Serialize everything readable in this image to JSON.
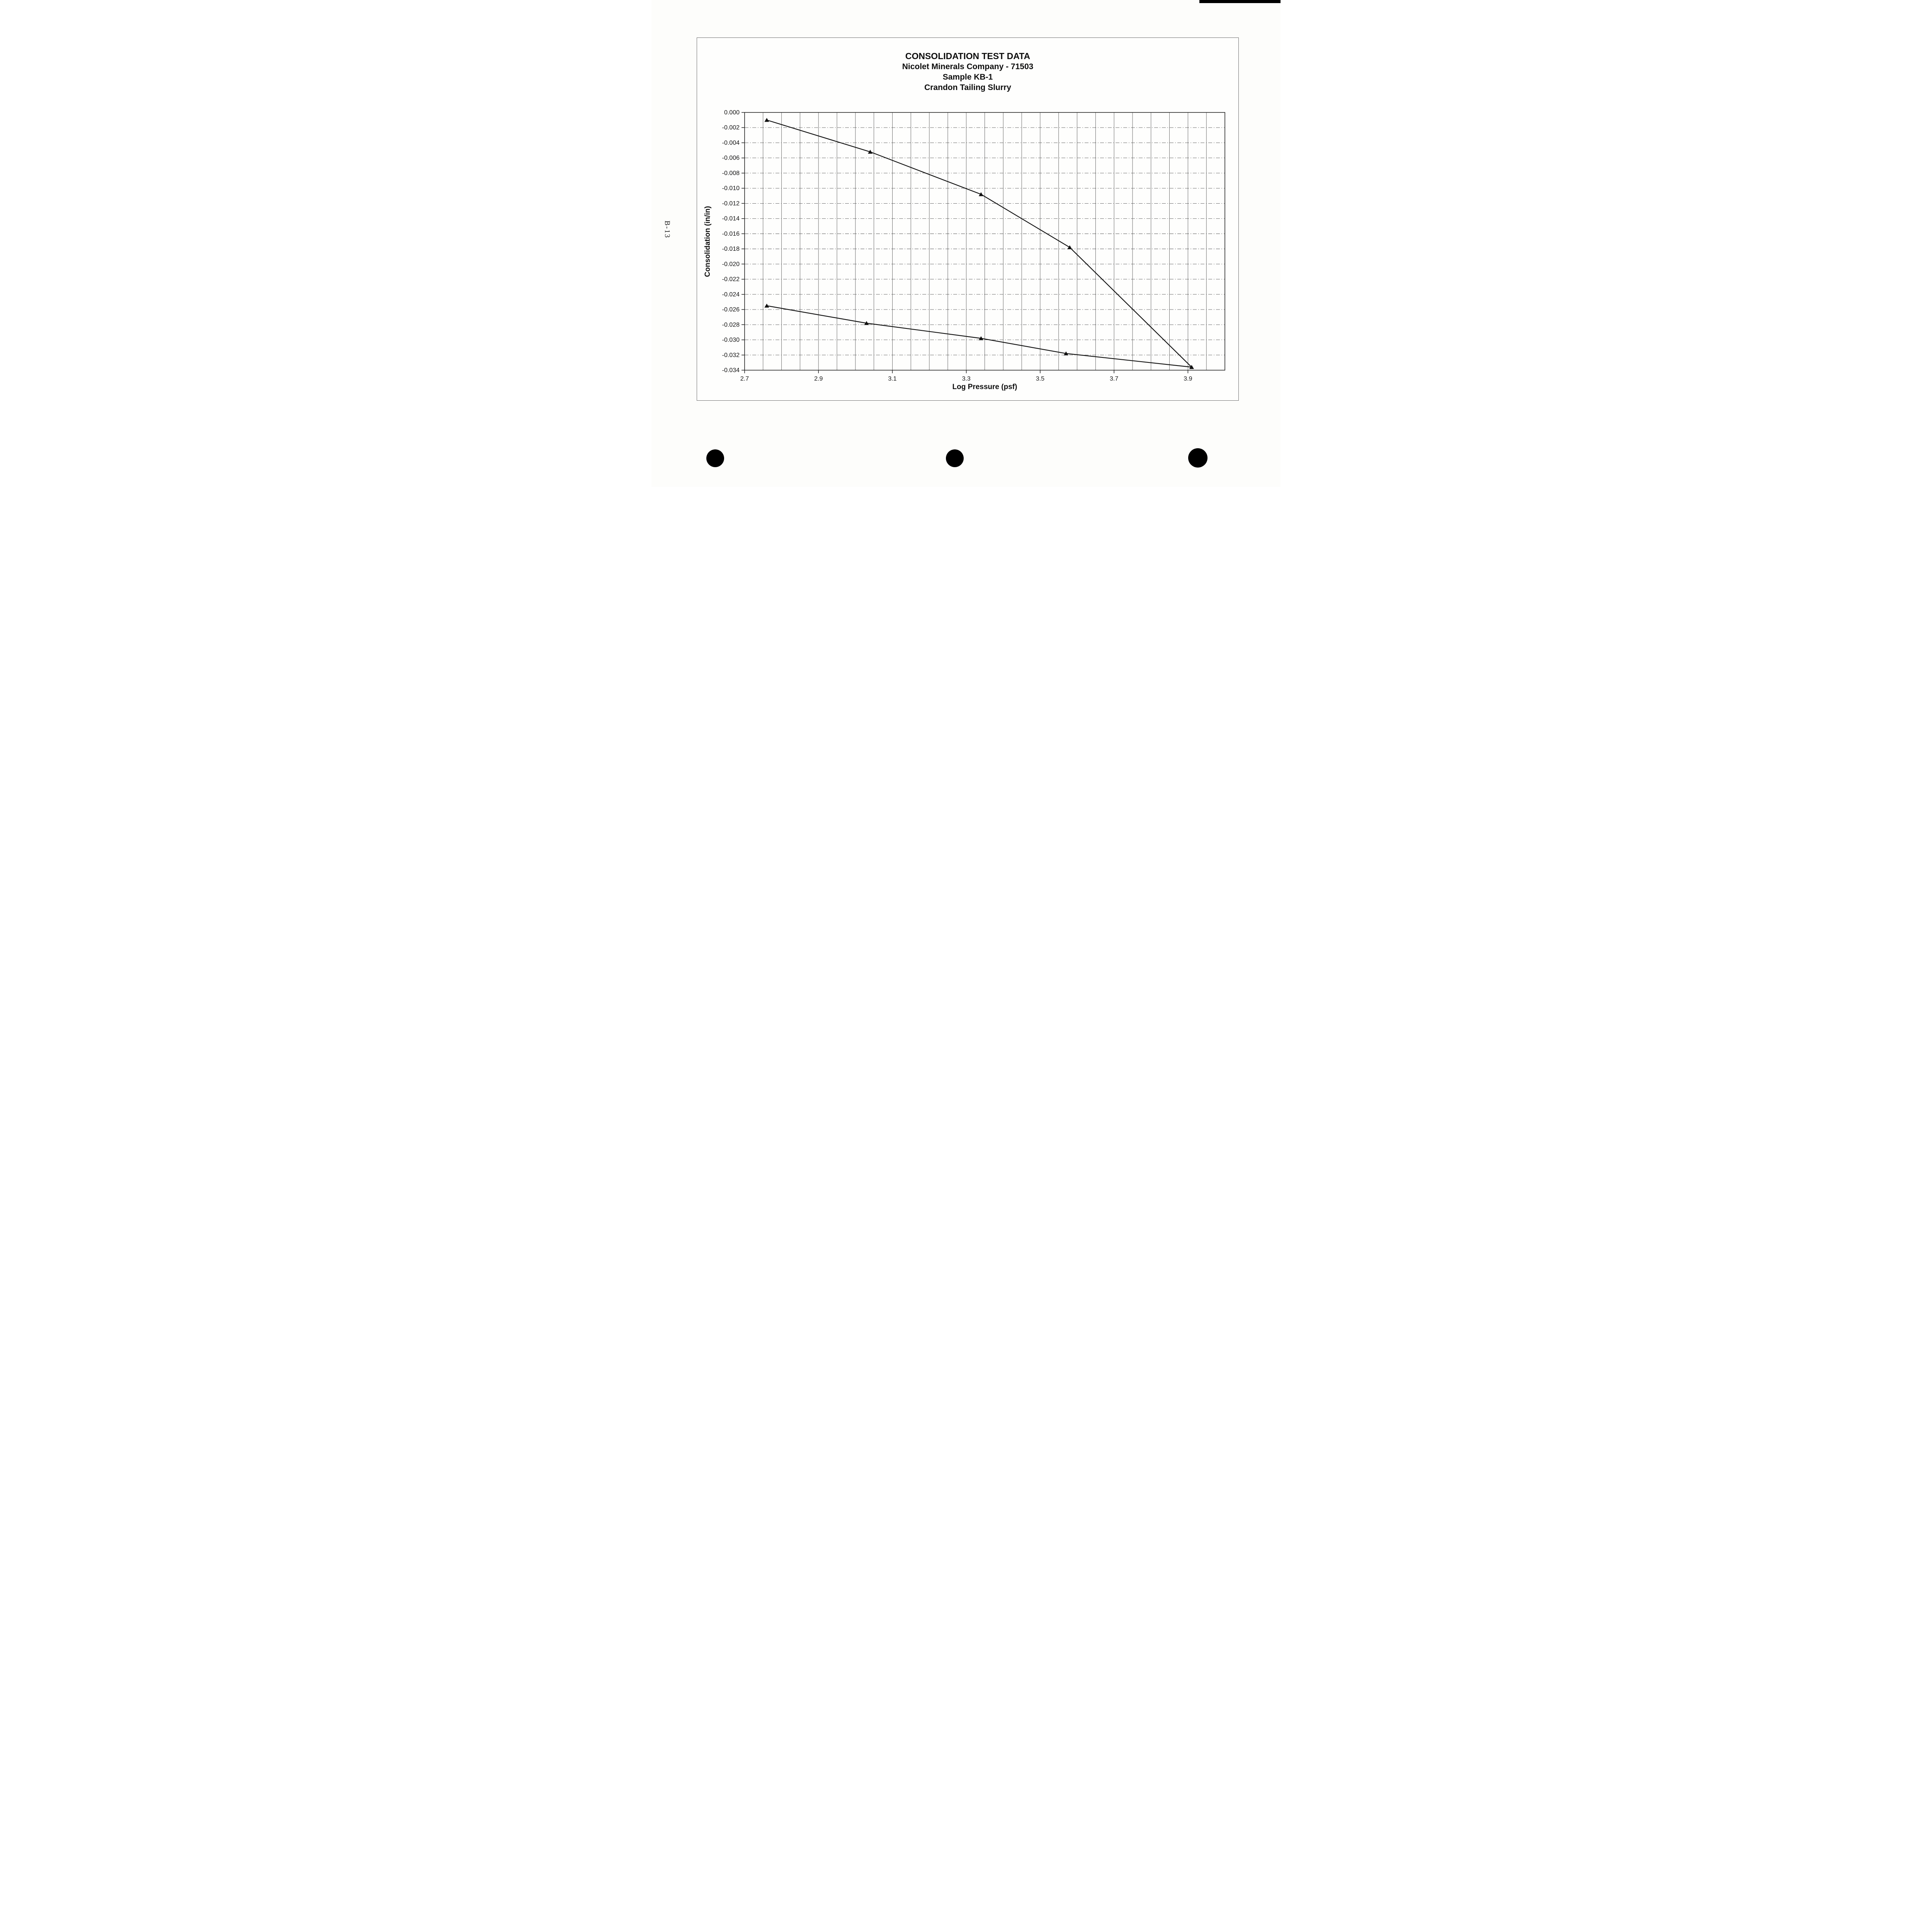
{
  "page": {
    "side_label": "B-13"
  },
  "chart_data": {
    "type": "line",
    "title": "CONSOLIDATION TEST DATA",
    "title_lines": [
      "CONSOLIDATION TEST DATA",
      "Nicolet Minerals Company - 71503",
      "Sample KB-1",
      "Crandon Tailing Slurry"
    ],
    "xlabel": "Log Pressure (psf)",
    "ylabel": "Consolidation (in/in)",
    "xlim": [
      2.7,
      4.0
    ],
    "ylim": [
      -0.034,
      0.0
    ],
    "x_ticks": [
      2.7,
      2.9,
      3.1,
      3.3,
      3.5,
      3.7,
      3.9
    ],
    "x_tick_labels": [
      "2.7",
      "2.9",
      "3.1",
      "3.3",
      "3.5",
      "3.7",
      "3.9"
    ],
    "y_ticks": [
      0,
      -0.002,
      -0.004,
      -0.006,
      -0.008,
      -0.01,
      -0.012,
      -0.014,
      -0.016,
      -0.018,
      -0.02,
      -0.022,
      -0.024,
      -0.026,
      -0.028,
      -0.03,
      -0.032,
      -0.034
    ],
    "y_tick_labels": [
      "0.000",
      "-0.002",
      "-0.004",
      "-0.006",
      "-0.008",
      "-0.010",
      "-0.012",
      "-0.014",
      "-0.016",
      "-0.018",
      "-0.020",
      "-0.022",
      "-0.024",
      "-0.026",
      "-0.028",
      "-0.030",
      "-0.032",
      "-0.034"
    ],
    "x_grid_step": 0.05,
    "grid": true,
    "legend": "none",
    "marker": "triangle",
    "line_color": "#111111",
    "grid_color": "#565656",
    "series": [
      {
        "name": "upper-curve",
        "x": [
          2.76,
          3.04,
          3.34,
          3.58,
          3.91
        ],
        "y": [
          -0.001,
          -0.0052,
          -0.0108,
          -0.0178,
          -0.0336
        ]
      },
      {
        "name": "lower-curve",
        "x": [
          2.76,
          3.03,
          3.34,
          3.57,
          3.91
        ],
        "y": [
          -0.0255,
          -0.0278,
          -0.0298,
          -0.0318,
          -0.0336
        ]
      }
    ]
  }
}
